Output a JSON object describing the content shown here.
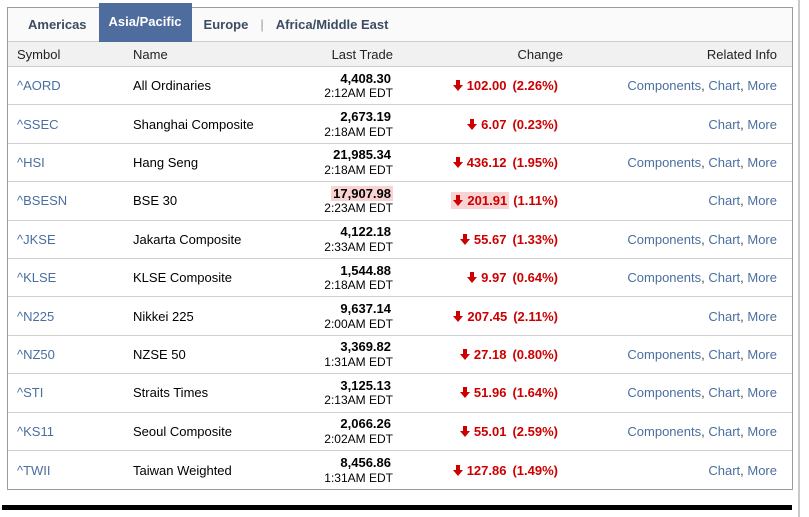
{
  "panel": {
    "tabs": [
      {
        "label": "Americas",
        "active": false,
        "separator_after": false
      },
      {
        "label": "Asia/Pacific",
        "active": true,
        "separator_after": false
      },
      {
        "label": "Europe",
        "active": false,
        "separator_after": true
      },
      {
        "label": "Africa/Middle East",
        "active": false,
        "separator_after": false
      }
    ]
  },
  "table": {
    "headers": {
      "symbol": "Symbol",
      "name": "Name",
      "last_trade": "Last Trade",
      "change": "Change",
      "related_info": "Related Info"
    },
    "rows": [
      {
        "symbol": "^AORD",
        "name": "All Ordinaries",
        "price": "4,408.30",
        "time": "2:12AM EDT",
        "change": {
          "value": "102.00",
          "pct": "(2.26%)",
          "direction": "down"
        },
        "links": [
          "Components",
          "Chart",
          "More"
        ],
        "flash": false
      },
      {
        "symbol": "^SSEC",
        "name": "Shanghai Composite",
        "price": "2,673.19",
        "time": "2:18AM EDT",
        "change": {
          "value": "6.07",
          "pct": "(0.23%)",
          "direction": "down"
        },
        "links": [
          "Chart",
          "More"
        ],
        "flash": false
      },
      {
        "symbol": "^HSI",
        "name": "Hang Seng",
        "price": "21,985.34",
        "time": "2:18AM EDT",
        "change": {
          "value": "436.12",
          "pct": "(1.95%)",
          "direction": "down"
        },
        "links": [
          "Components",
          "Chart",
          "More"
        ],
        "flash": false
      },
      {
        "symbol": "^BSESN",
        "name": "BSE 30",
        "price": "17,907.98",
        "time": "2:23AM EDT",
        "change": {
          "value": "201.91",
          "pct": "(1.11%)",
          "direction": "down"
        },
        "links": [
          "Chart",
          "More"
        ],
        "flash": true
      },
      {
        "symbol": "^JKSE",
        "name": "Jakarta Composite",
        "price": "4,122.18",
        "time": "2:33AM EDT",
        "change": {
          "value": "55.67",
          "pct": "(1.33%)",
          "direction": "down"
        },
        "links": [
          "Components",
          "Chart",
          "More"
        ],
        "flash": false
      },
      {
        "symbol": "^KLSE",
        "name": "KLSE Composite",
        "price": "1,544.88",
        "time": "2:18AM EDT",
        "change": {
          "value": "9.97",
          "pct": "(0.64%)",
          "direction": "down"
        },
        "links": [
          "Components",
          "Chart",
          "More"
        ],
        "flash": false
      },
      {
        "symbol": "^N225",
        "name": "Nikkei 225",
        "price": "9,637.14",
        "time": "2:00AM EDT",
        "change": {
          "value": "207.45",
          "pct": "(2.11%)",
          "direction": "down"
        },
        "links": [
          "Chart",
          "More"
        ],
        "flash": false
      },
      {
        "symbol": "^NZ50",
        "name": "NZSE 50",
        "price": "3,369.82",
        "time": "1:31AM EDT",
        "change": {
          "value": "27.18",
          "pct": "(0.80%)",
          "direction": "down"
        },
        "links": [
          "Components",
          "Chart",
          "More"
        ],
        "flash": false
      },
      {
        "symbol": "^STI",
        "name": "Straits Times",
        "price": "3,125.13",
        "time": "2:13AM EDT",
        "change": {
          "value": "51.96",
          "pct": "(1.64%)",
          "direction": "down"
        },
        "links": [
          "Components",
          "Chart",
          "More"
        ],
        "flash": false
      },
      {
        "symbol": "^KS11",
        "name": "Seoul Composite",
        "price": "2,066.26",
        "time": "2:02AM EDT",
        "change": {
          "value": "55.01",
          "pct": "(2.59%)",
          "direction": "down"
        },
        "links": [
          "Components",
          "Chart",
          "More"
        ],
        "flash": false
      },
      {
        "symbol": "^TWII",
        "name": "Taiwan Weighted",
        "price": "8,456.86",
        "time": "1:31AM EDT",
        "change": {
          "value": "127.86",
          "pct": "(1.49%)",
          "direction": "down"
        },
        "links": [
          "Chart",
          "More"
        ],
        "flash": false
      }
    ]
  },
  "colors": {
    "active_tab_bg": "#4e6c9d",
    "tab_text": "#3c4d63",
    "link": "#4a6f9f",
    "negative": "#cc0000",
    "flash_bg": "#f9d3d3",
    "header_bg": "#f1f1f1",
    "panel_border": "#9b9b9b",
    "row_border": "#d0d0d0",
    "black_rule": "#000000"
  }
}
